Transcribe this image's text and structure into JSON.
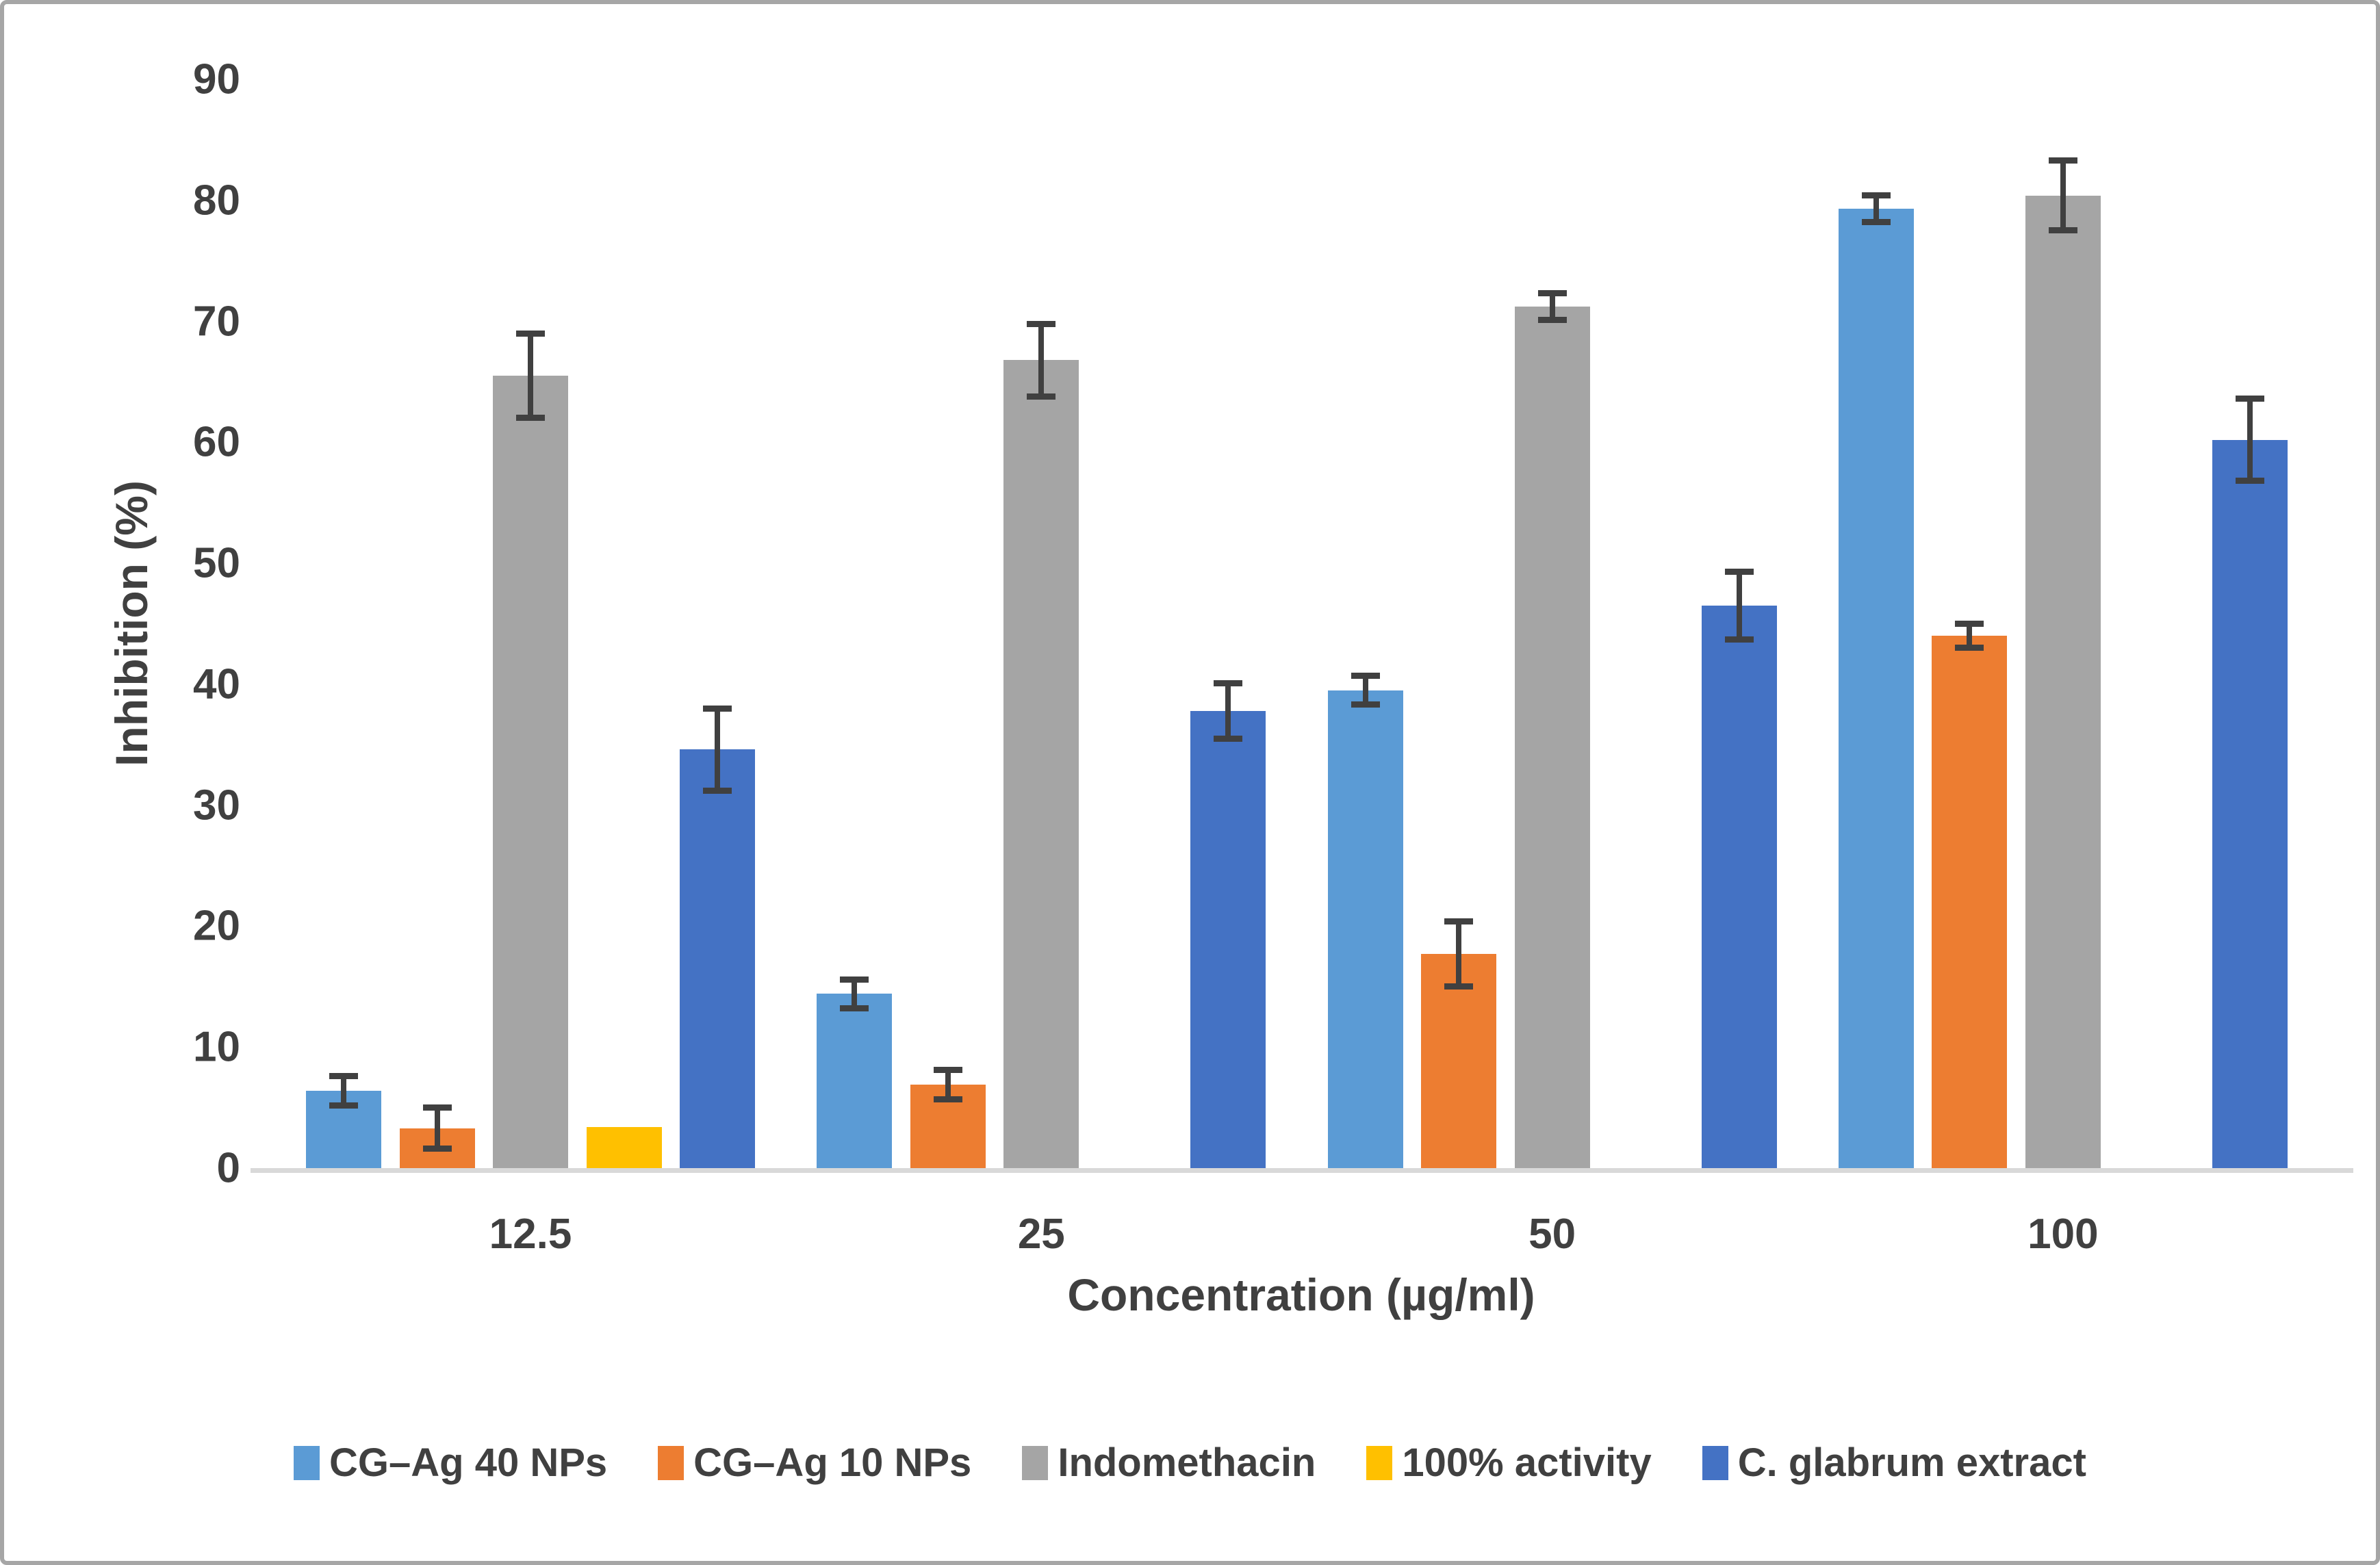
{
  "chart_data": {
    "type": "bar",
    "title": "",
    "xlabel": "Concentration (µg/ml)",
    "ylabel": "Inhibition (%)",
    "ylim": [
      0,
      90
    ],
    "ytick_step": 10,
    "grid": false,
    "legend_position": "bottom",
    "categories": [
      "12.5",
      "25",
      "50",
      "100"
    ],
    "series": [
      {
        "name": "CG–Ag 40 NPs",
        "color": "#5B9BD5",
        "values": [
          6.4,
          14.4,
          39.5,
          79.3
        ],
        "errors": [
          1.2,
          1.2,
          1.2,
          1.1
        ]
      },
      {
        "name": "CG–Ag 10 NPs",
        "color": "#ED7D31",
        "values": [
          3.3,
          6.9,
          17.7,
          44.0
        ],
        "errors": [
          1.7,
          1.2,
          2.7,
          1.0
        ]
      },
      {
        "name": "Indomethacin",
        "color": "#A5A5A5",
        "values": [
          65.5,
          66.8,
          71.2,
          80.4
        ],
        "errors": [
          3.5,
          3.0,
          1.1,
          2.9
        ]
      },
      {
        "name": "100% activity",
        "color": "#FFC000",
        "values": [
          3.4,
          0,
          0,
          0
        ],
        "errors": [
          0,
          0,
          0,
          0
        ]
      },
      {
        "name": "C. glabrum extract",
        "color": "#4472C4",
        "values": [
          34.6,
          37.8,
          46.5,
          60.2
        ],
        "errors": [
          3.4,
          2.3,
          2.8,
          3.4
        ]
      }
    ],
    "error_bar_color": "#404040",
    "axis_line_color": "#D9D9D9",
    "text_color": "#404040"
  }
}
